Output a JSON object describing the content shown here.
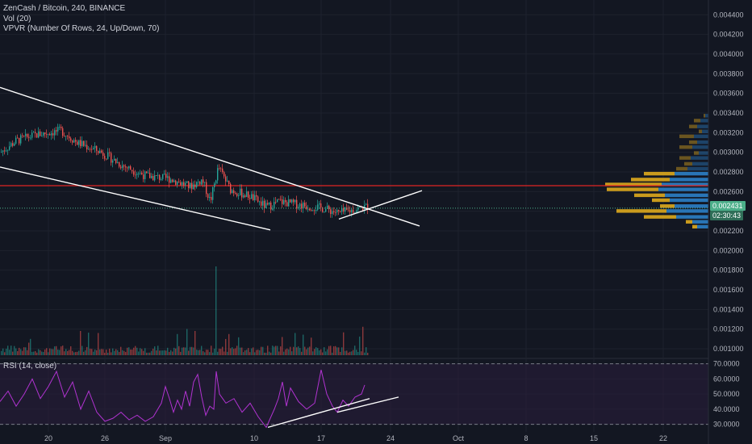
{
  "legend": {
    "symbol_line": "ZenCash / Bitcoin, 240, BINANCE",
    "vol_line": "Vol (20)",
    "vpvr_line": "VPVR (Number Of Rows, 24, Up/Down, 70)",
    "rsi_line": "RSI (14, close)"
  },
  "price_tag": {
    "price": "0.002431",
    "countdown": "02:30:43"
  },
  "colors": {
    "background": "#131722",
    "grid": "#1e222d",
    "up": "#26a69a",
    "down": "#ef5350",
    "rsi": "#b133d1",
    "rsi_band": "#2a1e3d",
    "vpvr_up": "#2a7abf",
    "vpvr_down": "#d4a21e",
    "trendline": "#ffffff",
    "hline": "#e02424",
    "last_price": "#4caf8a"
  },
  "chart_data": [
    {
      "type": "candlestick",
      "title": "ZenCash / Bitcoin, 240, BINANCE",
      "y_ticks": [
        "0.004400",
        "0.004200",
        "0.004000",
        "0.003800",
        "0.003600",
        "0.003400",
        "0.003200",
        "0.003000",
        "0.002800",
        "0.002600",
        "0.002400",
        "0.002200",
        "0.002000",
        "0.001800",
        "0.001600",
        "0.001400",
        "0.001200",
        "0.001000"
      ],
      "x_ticks": [
        "20",
        "26",
        "Sep",
        "10",
        "17",
        "24",
        "Oct",
        "8",
        "15",
        "22"
      ],
      "ylim": [
        0.00091,
        0.00455
      ],
      "last_price": 0.002431,
      "horizontal_line": 0.00266,
      "path": [
        [
          0,
          0.003
        ],
        [
          20,
          0.00312
        ],
        [
          45,
          0.00318
        ],
        [
          75,
          0.00322
        ],
        [
          95,
          0.0031
        ],
        [
          125,
          0.003
        ],
        [
          150,
          0.00287
        ],
        [
          180,
          0.00276
        ],
        [
          210,
          0.00273
        ],
        [
          235,
          0.00265
        ],
        [
          250,
          0.00272
        ],
        [
          260,
          0.0025
        ],
        [
          270,
          0.00285
        ],
        [
          285,
          0.00262
        ],
        [
          310,
          0.00255
        ],
        [
          330,
          0.00244
        ],
        [
          345,
          0.0025
        ],
        [
          375,
          0.00246
        ],
        [
          400,
          0.00243
        ],
        [
          420,
          0.00238
        ],
        [
          440,
          0.00242
        ],
        [
          455,
          0.00245
        ]
      ],
      "trendlines": [
        {
          "from": [
            0,
            0.00366
          ],
          "to": [
            520,
            0.00225
          ]
        },
        {
          "from": [
            0,
            0.00285
          ],
          "to": [
            335,
            0.00221
          ]
        },
        {
          "from": [
            420,
            0.00232
          ],
          "to": [
            523,
            0.00261
          ]
        }
      ],
      "vpvr": {
        "rows": [
          0.00337,
          0.00332,
          0.00326,
          0.00321,
          0.00316,
          0.0031,
          0.00305,
          0.00299,
          0.00294,
          0.00288,
          0.00283,
          0.00278,
          0.00272,
          0.00267,
          0.00262,
          0.00256,
          0.00251,
          0.00245,
          0.0024,
          0.00234,
          0.00229,
          0.00224
        ],
        "up": [
          4,
          10,
          14,
          8,
          18,
          14,
          20,
          12,
          22,
          20,
          26,
          42,
          48,
          58,
          62,
          54,
          48,
          42,
          52,
          40,
          20,
          14
        ],
        "down": [
          2,
          8,
          10,
          4,
          18,
          10,
          16,
          6,
          14,
          10,
          14,
          38,
          48,
          70,
          64,
          38,
          22,
          18,
          62,
          40,
          8,
          6
        ]
      }
    },
    {
      "type": "bar",
      "title": "Vol (20)"
    },
    {
      "type": "line",
      "title": "RSI (14, close)",
      "y_ticks": [
        "70.0000",
        "60.0000",
        "50.0000",
        "40.0000",
        "30.0000"
      ],
      "ylim": [
        25,
        73
      ],
      "band": [
        30,
        70
      ],
      "path": [
        [
          0,
          45
        ],
        [
          10,
          52
        ],
        [
          20,
          42
        ],
        [
          30,
          50
        ],
        [
          40,
          60
        ],
        [
          50,
          47
        ],
        [
          60,
          55
        ],
        [
          70,
          65
        ],
        [
          80,
          48
        ],
        [
          90,
          58
        ],
        [
          100,
          40
        ],
        [
          110,
          52
        ],
        [
          120,
          38
        ],
        [
          130,
          32
        ],
        [
          140,
          34
        ],
        [
          150,
          38
        ],
        [
          160,
          33
        ],
        [
          170,
          36
        ],
        [
          180,
          32
        ],
        [
          190,
          35
        ],
        [
          200,
          44
        ],
        [
          205,
          55
        ],
        [
          210,
          47
        ],
        [
          215,
          38
        ],
        [
          220,
          46
        ],
        [
          225,
          40
        ],
        [
          230,
          52
        ],
        [
          235,
          42
        ],
        [
          240,
          58
        ],
        [
          245,
          63
        ],
        [
          250,
          48
        ],
        [
          255,
          36
        ],
        [
          260,
          42
        ],
        [
          265,
          40
        ],
        [
          268,
          65
        ],
        [
          272,
          50
        ],
        [
          280,
          44
        ],
        [
          290,
          47
        ],
        [
          300,
          38
        ],
        [
          310,
          44
        ],
        [
          320,
          35
        ],
        [
          330,
          28
        ],
        [
          340,
          40
        ],
        [
          345,
          47
        ],
        [
          350,
          58
        ],
        [
          355,
          42
        ],
        [
          360,
          54
        ],
        [
          370,
          45
        ],
        [
          380,
          40
        ],
        [
          390,
          44
        ],
        [
          398,
          66
        ],
        [
          405,
          50
        ],
        [
          412,
          42
        ],
        [
          418,
          38
        ],
        [
          425,
          46
        ],
        [
          432,
          42
        ],
        [
          440,
          48
        ],
        [
          448,
          50
        ],
        [
          452,
          56
        ]
      ],
      "trendlines": [
        {
          "from": [
            332,
            28
          ],
          "to": [
            458,
            47
          ]
        },
        {
          "from": [
            418,
            38
          ],
          "to": [
            494,
            48
          ]
        }
      ]
    }
  ]
}
